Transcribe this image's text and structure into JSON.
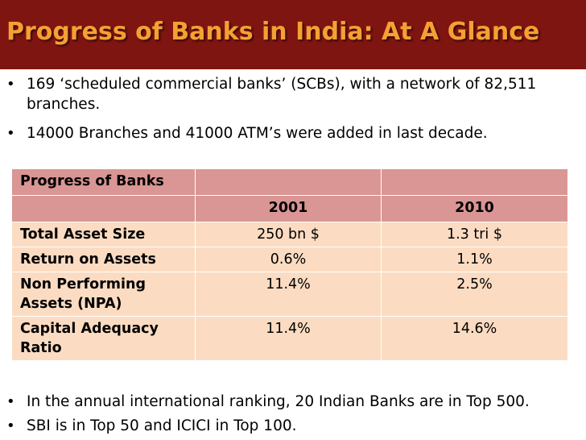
{
  "title": "Progress of Banks in India: At A Glance",
  "bullets_top": [
    "169 ‘scheduled commercial banks’ (SCBs), with a network of 82,511 branches.",
    "14000 Branches and 41000 ATM’s were added in last decade."
  ],
  "table": {
    "caption": "Progress of Banks",
    "columns": [
      "",
      "2001",
      "2010"
    ],
    "rows": [
      {
        "label": "Total Asset Size",
        "v2001": "250 bn $",
        "v2010": "1.3 tri $"
      },
      {
        "label": "Return on Assets",
        "v2001": "0.6%",
        "v2010": "1.1%"
      },
      {
        "label": "Non Performing Assets (NPA)",
        "v2001": "11.4%",
        "v2010": "2.5%"
      },
      {
        "label": "Capital Adequacy Ratio",
        "v2001": "11.4%",
        "v2010": "14.6%"
      }
    ]
  },
  "bullets_bottom": [
    "In the annual international ranking, 20 Indian Banks are in Top 500.",
    "SBI is in Top 50 and ICICI in Top 100."
  ],
  "colors": {
    "title_bar": "#7f1511",
    "title_text": "#f5a033",
    "table_header": "#d99694",
    "table_body": "#fbdcc2"
  }
}
